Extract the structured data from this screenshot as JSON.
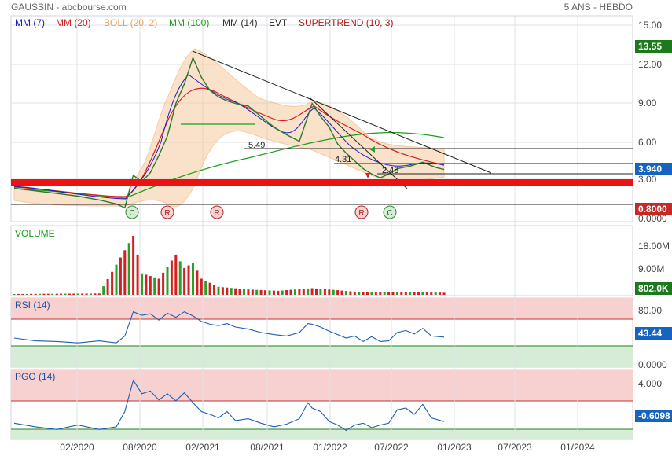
{
  "header": {
    "ticker": "GAUSSIN - abcbourse.com",
    "period": "5 ANS - HEBDO"
  },
  "legend": [
    {
      "label": "MM (7)",
      "color": "#1a1acc"
    },
    {
      "label": "MM (20)",
      "color": "#d42020"
    },
    {
      "label": "BOLL (20, 2)",
      "color": "#f0a050"
    },
    {
      "label": "MM (100)",
      "color": "#1aa01a"
    },
    {
      "label": "MM (14)",
      "color": "#303030"
    },
    {
      "label": "EVT",
      "color": "#202020"
    },
    {
      "label": "SUPERTREND (10, 3)",
      "color": "#b01a1a"
    }
  ],
  "colors": {
    "grid": "#dde0e6",
    "axis_text": "#444444",
    "up": "#2aa02a",
    "down": "#d42020",
    "boll_fill": "#f6c9a0",
    "last_price_badge": "#1565c0",
    "green_badge": "#1b7a1b",
    "red_badge": "#c62828",
    "rsi_over": "#f7d0d0",
    "rsi_under": "#d6ecd6"
  },
  "x_axis": {
    "ticks": [
      "02/2020",
      "08/2020",
      "02/2021",
      "08/2021",
      "01/2022",
      "07/2022",
      "01/2023",
      "07/2023",
      "01/2024"
    ]
  },
  "price_panel": {
    "y_ticks": [
      "15.00",
      "12.00",
      "9.00",
      "6.00",
      "3.00",
      "0.0000"
    ],
    "badges": {
      "high": "13.55",
      "last": "3.940",
      "low": "0.8000"
    },
    "annotations": [
      "5.49",
      "4.31",
      "2.48"
    ],
    "signals": [
      "C",
      "R",
      "R",
      "R",
      "C"
    ]
  },
  "volume_panel": {
    "title": "VOLUME",
    "y_ticks": [
      "18.00M",
      "9.00M"
    ],
    "last": "802.0K"
  },
  "rsi_panel": {
    "title": "RSI (14)",
    "y_ticks": [
      "80.00",
      "0.0000"
    ],
    "last": "43.44"
  },
  "pgo_panel": {
    "title": "PGO (14)",
    "y_ticks": [
      "4.000"
    ],
    "last": "-0.6098"
  },
  "chart_data": {
    "type": "line",
    "title": "GAUSSIN - abcbourse.com",
    "subtitle": "5 ANS - HEBDO",
    "series": [
      {
        "name": "GAUSSIN",
        "points": [
          [
            0,
            2.5
          ],
          [
            5,
            2.3
          ],
          [
            10,
            2.1
          ],
          [
            15,
            1.9
          ],
          [
            20,
            1.6
          ],
          [
            24,
            1.3
          ],
          [
            26,
            1.0
          ],
          [
            28,
            3.5
          ],
          [
            30,
            3.0
          ],
          [
            32,
            3.7
          ],
          [
            34,
            5.0
          ],
          [
            36,
            6.5
          ],
          [
            38,
            9.0
          ],
          [
            40,
            10.5
          ],
          [
            42,
            12.5
          ],
          [
            44,
            11.0
          ],
          [
            46,
            10.0
          ],
          [
            48,
            9.5
          ],
          [
            50,
            9.2
          ],
          [
            52,
            9.0
          ],
          [
            55,
            8.8
          ],
          [
            58,
            8.0
          ],
          [
            61,
            7.2
          ],
          [
            64,
            6.6
          ],
          [
            67,
            6.1
          ],
          [
            70,
            9.0
          ],
          [
            72,
            8.0
          ],
          [
            74,
            7.2
          ],
          [
            76,
            5.9
          ],
          [
            78,
            5.2
          ],
          [
            80,
            4.6
          ],
          [
            82,
            4.0
          ],
          [
            84,
            3.6
          ],
          [
            86,
            3.3
          ],
          [
            88,
            3.6
          ],
          [
            90,
            4.0
          ],
          [
            93,
            4.2
          ],
          [
            96,
            4.5
          ],
          [
            99,
            4.1
          ],
          [
            101,
            3.94
          ]
        ]
      }
    ],
    "volume": [
      [
        0,
        0.3
      ],
      [
        10,
        0.4
      ],
      [
        20,
        0.5
      ],
      [
        28,
        22.0
      ],
      [
        30,
        8.0
      ],
      [
        34,
        6.0
      ],
      [
        38,
        15.0
      ],
      [
        40,
        10.0
      ],
      [
        42,
        12.0
      ],
      [
        44,
        6.0
      ],
      [
        48,
        3.0
      ],
      [
        55,
        2.0
      ],
      [
        62,
        1.5
      ],
      [
        70,
        2.5
      ],
      [
        80,
        1.2
      ],
      [
        90,
        1.0
      ],
      [
        101,
        0.8
      ]
    ],
    "rsi": [
      [
        0,
        42
      ],
      [
        5,
        38
      ],
      [
        10,
        37
      ],
      [
        15,
        35
      ],
      [
        20,
        38
      ],
      [
        24,
        35
      ],
      [
        26,
        45
      ],
      [
        28,
        80
      ],
      [
        30,
        75
      ],
      [
        32,
        77
      ],
      [
        34,
        68
      ],
      [
        36,
        78
      ],
      [
        38,
        72
      ],
      [
        40,
        80
      ],
      [
        42,
        74
      ],
      [
        44,
        66
      ],
      [
        46,
        62
      ],
      [
        48,
        60
      ],
      [
        50,
        63
      ],
      [
        52,
        58
      ],
      [
        55,
        55
      ],
      [
        58,
        50
      ],
      [
        61,
        47
      ],
      [
        64,
        45
      ],
      [
        67,
        50
      ],
      [
        69,
        63
      ],
      [
        70,
        62
      ],
      [
        72,
        58
      ],
      [
        74,
        52
      ],
      [
        76,
        47
      ],
      [
        78,
        42
      ],
      [
        80,
        45
      ],
      [
        82,
        37
      ],
      [
        84,
        44
      ],
      [
        86,
        37
      ],
      [
        88,
        38
      ],
      [
        90,
        50
      ],
      [
        92,
        53
      ],
      [
        94,
        48
      ],
      [
        96,
        56
      ],
      [
        98,
        45
      ],
      [
        101,
        43.44
      ]
    ],
    "pgo": [
      [
        0,
        -0.8
      ],
      [
        5,
        -1.2
      ],
      [
        10,
        -1.5
      ],
      [
        15,
        -1.0
      ],
      [
        20,
        -1.5
      ],
      [
        24,
        -1.2
      ],
      [
        26,
        0.5
      ],
      [
        28,
        4.0
      ],
      [
        30,
        2.5
      ],
      [
        32,
        2.8
      ],
      [
        34,
        1.8
      ],
      [
        36,
        2.5
      ],
      [
        38,
        1.7
      ],
      [
        40,
        2.6
      ],
      [
        42,
        1.5
      ],
      [
        44,
        0.5
      ],
      [
        46,
        0.2
      ],
      [
        48,
        -0.2
      ],
      [
        50,
        0.5
      ],
      [
        52,
        -0.5
      ],
      [
        55,
        -0.3
      ],
      [
        58,
        -0.8
      ],
      [
        61,
        -1.2
      ],
      [
        64,
        -0.9
      ],
      [
        67,
        -0.3
      ],
      [
        69,
        1.5
      ],
      [
        70,
        0.9
      ],
      [
        72,
        0.5
      ],
      [
        74,
        -0.6
      ],
      [
        76,
        -1.0
      ],
      [
        78,
        -1.6
      ],
      [
        80,
        -1.0
      ],
      [
        82,
        -0.8
      ],
      [
        84,
        -1.3
      ],
      [
        86,
        -1.0
      ],
      [
        88,
        -0.8
      ],
      [
        90,
        0.7
      ],
      [
        92,
        0.9
      ],
      [
        94,
        0.2
      ],
      [
        96,
        1.3
      ],
      [
        98,
        -0.2
      ],
      [
        101,
        -0.6098
      ]
    ],
    "ylim_price": [
      0,
      15
    ],
    "ylim_volume": [
      0,
      22
    ],
    "ylim_rsi": [
      0,
      100
    ],
    "ylim_pgo": [
      -2,
      4.5
    ],
    "grid": true,
    "legend": "top-left"
  }
}
